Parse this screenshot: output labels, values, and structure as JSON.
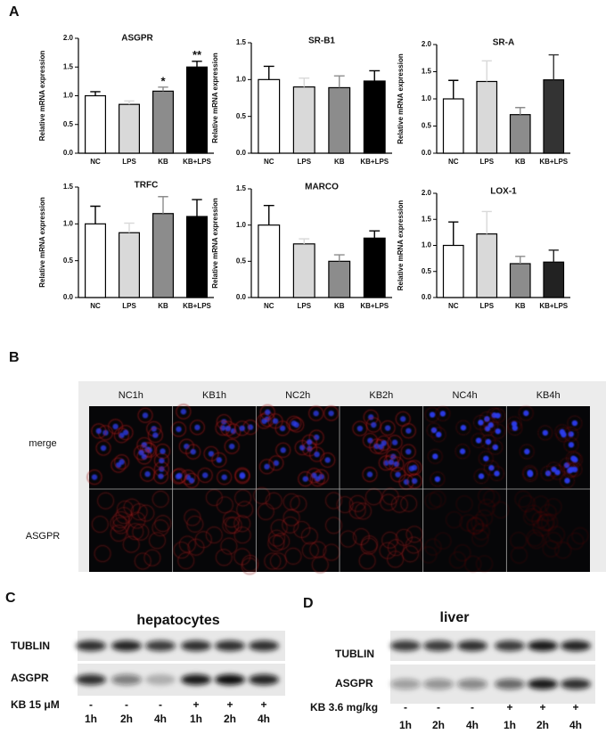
{
  "panel_a_label": "A",
  "chart_data": [
    {
      "type": "bar",
      "title": "ASGPR",
      "ylabel": "Relative mRNA expression",
      "categories": [
        "NC",
        "LPS",
        "KB",
        "KB+LPS"
      ],
      "values": [
        1.0,
        0.85,
        1.08,
        1.5
      ],
      "errors": [
        0.07,
        0.06,
        0.07,
        0.1
      ],
      "colors": [
        "#ffffff",
        "#d9d9d9",
        "#8c8c8c",
        "#000000"
      ],
      "ylim": [
        0,
        2.0
      ],
      "yticks": [
        {
          "value": 0,
          "label": "0.0"
        },
        0.5,
        {
          "value": 1,
          "label": "1.0"
        },
        1.5,
        {
          "value": 2,
          "label": "2.0"
        }
      ],
      "annotations": [
        {
          "category": "KB",
          "text": "*"
        },
        {
          "category": "KB+LPS",
          "text": "**"
        }
      ]
    },
    {
      "type": "bar",
      "title": "SR-B1",
      "ylabel": "Relative mRNA expression",
      "categories": [
        "NC",
        "LPS",
        "KB",
        "KB+LPS"
      ],
      "values": [
        1.0,
        0.9,
        0.89,
        0.98
      ],
      "errors": [
        0.18,
        0.12,
        0.16,
        0.14
      ],
      "colors": [
        "#ffffff",
        "#d9d9d9",
        "#8c8c8c",
        "#000000"
      ],
      "ylim": [
        0,
        1.5
      ],
      "yticks": [
        {
          "value": 0,
          "label": "0.0"
        },
        0.5,
        {
          "value": 1,
          "label": "1.0"
        },
        1.5
      ]
    },
    {
      "type": "bar",
      "title": "SR-A",
      "ylabel": "Relative mRNA expression",
      "categories": [
        "NC",
        "LPS",
        "KB",
        "KB+LPS"
      ],
      "values": [
        1.0,
        1.32,
        0.71,
        1.35
      ],
      "errors": [
        0.34,
        0.38,
        0.13,
        0.46
      ],
      "colors": [
        "#ffffff",
        "#d9d9d9",
        "#8c8c8c",
        "#333333"
      ],
      "ylim": [
        0,
        2.0
      ],
      "yticks": [
        {
          "value": 0,
          "label": "0.0"
        },
        0.5,
        {
          "value": 1,
          "label": "1.0"
        },
        1.5,
        {
          "value": 2,
          "label": "2.0"
        }
      ]
    },
    {
      "type": "bar",
      "title": "TRFC",
      "ylabel": "Relative mRNA expression",
      "categories": [
        "NC",
        "LPS",
        "KB",
        "KB+LPS"
      ],
      "values": [
        1.0,
        0.88,
        1.14,
        1.1
      ],
      "errors": [
        0.24,
        0.13,
        0.23,
        0.23
      ],
      "colors": [
        "#ffffff",
        "#d9d9d9",
        "#8c8c8c",
        "#000000"
      ],
      "ylim": [
        0,
        1.5
      ],
      "yticks": [
        {
          "value": 0,
          "label": "0.0"
        },
        0.5,
        {
          "value": 1,
          "label": "1.0"
        },
        1.5
      ]
    },
    {
      "type": "bar",
      "title": "MARCO",
      "ylabel": "Relative mRNA expression",
      "categories": [
        "NC",
        "LPS",
        "KB",
        "KB+LPS"
      ],
      "values": [
        1.0,
        0.74,
        0.5,
        0.82
      ],
      "errors": [
        0.27,
        0.07,
        0.09,
        0.1
      ],
      "colors": [
        "#ffffff",
        "#d9d9d9",
        "#8c8c8c",
        "#000000"
      ],
      "ylim": [
        0,
        1.5
      ],
      "yticks": [
        {
          "value": 0,
          "label": "0.0"
        },
        0.5,
        {
          "value": 1,
          "label": "1.0"
        },
        1.5
      ]
    },
    {
      "type": "bar",
      "title": "LOX-1",
      "ylabel": "Relative mRNA expression",
      "categories": [
        "NC",
        "LPS",
        "KB",
        "KB+LPS"
      ],
      "values": [
        1.0,
        1.22,
        0.65,
        0.68
      ],
      "errors": [
        0.45,
        0.43,
        0.14,
        0.23
      ],
      "colors": [
        "#ffffff",
        "#d9d9d9",
        "#8c8c8c",
        "#222222"
      ],
      "ylim": [
        0,
        2.0
      ],
      "yticks": [
        {
          "value": 0,
          "label": "0.0"
        },
        0.5,
        {
          "value": 1,
          "label": "1.0"
        },
        1.5,
        {
          "value": 2,
          "label": "2.0"
        }
      ]
    }
  ],
  "panel_b": {
    "label": "B",
    "columns": [
      "NC1h",
      "KB1h",
      "NC2h",
      "KB2h",
      "NC4h",
      "KB4h"
    ],
    "rows": [
      "merge",
      "ASGPR"
    ]
  },
  "panel_c": {
    "label": "C",
    "title": "hepatocytes",
    "blots": [
      "TUBLIN",
      "ASGPR"
    ],
    "treatment": "KB 15 μM",
    "signs": [
      "-",
      "-",
      "-",
      "+",
      "+",
      "+"
    ],
    "times": [
      "1h",
      "2h",
      "4h",
      "1h",
      "2h",
      "4h"
    ]
  },
  "panel_d": {
    "label": "D",
    "title": "liver",
    "blots": [
      "TUBLIN",
      "ASGPR"
    ],
    "treatment": "KB 3.6 mg/kg",
    "signs": [
      "-",
      "-",
      "-",
      "+",
      "+",
      "+"
    ],
    "times": [
      "1h",
      "2h",
      "4h",
      "1h",
      "2h",
      "4h"
    ]
  }
}
